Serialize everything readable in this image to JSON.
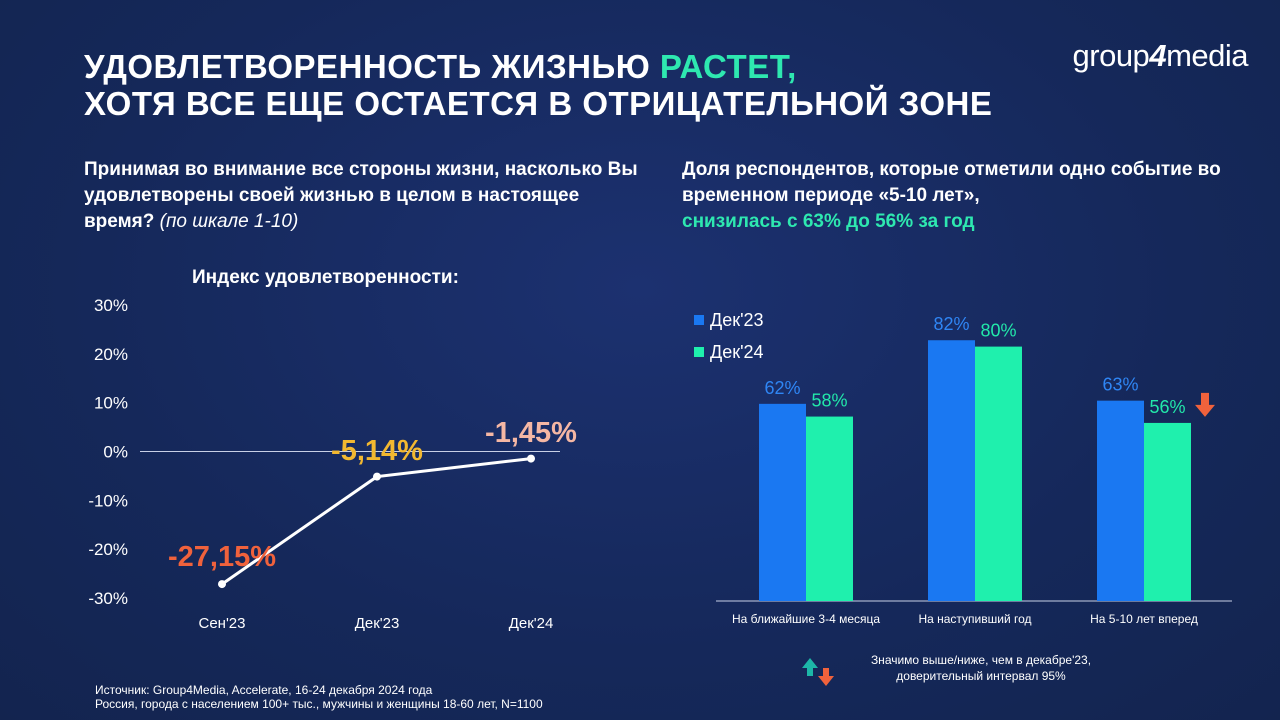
{
  "title": {
    "line1_prefix": "УДОВЛЕТВОРЕННОСТЬ ЖИЗНЬЮ ",
    "line1_accent": "РАСТЕТ,",
    "line2": "ХОТЯ ВСЕ ЕЩЕ ОСТАЕТСЯ В ОТРИЦАТЕЛЬНОЙ ЗОНЕ"
  },
  "logo": {
    "part1": "group",
    "part2": "4",
    "part3": "media"
  },
  "question": {
    "text": "Принимая во внимание все стороны жизни, насколько Вы удовлетворены своей жизнью в целом в настоящее время? ",
    "note": "(по шкале 1-10)"
  },
  "right_heading": {
    "text": "Доля респондентов, которые отметили одно событие во временном периоде «5-10 лет»,",
    "accent": "снизилась с 63% до 56% за год"
  },
  "colors": {
    "dec23": "#1a78f2",
    "dec24": "#1ff0ad",
    "accent": "#2ee8b0",
    "label_sep23": "#f0623c",
    "label_dec23": "#f2b830",
    "label_dec24": "#f5b7a4",
    "arrow_down": "#f0623c",
    "arrow_up": "#1db7a8"
  },
  "chart_data": [
    {
      "type": "line",
      "title": "Индекс удовлетворенности:",
      "categories": [
        "Сен'23",
        "Дек'23",
        "Дек'24"
      ],
      "values": [
        -27.15,
        -5.14,
        -1.45
      ],
      "data_labels": [
        "-27,15%",
        "-5,14%",
        "-1,45%"
      ],
      "ylim": [
        -30,
        30
      ],
      "yticks": [
        30,
        20,
        10,
        0,
        -10,
        -20,
        -30
      ],
      "ytick_labels": [
        "30%",
        "20%",
        "10%",
        "0%",
        "-10%",
        "-20%",
        "-30%"
      ],
      "grid": false
    },
    {
      "type": "bar",
      "categories": [
        "На ближайшие 3-4 месяца",
        "На наступивший год",
        "На 5-10 лет вперед"
      ],
      "series": [
        {
          "name": "Дек'23",
          "values": [
            62,
            82,
            63
          ],
          "labels": [
            "62%",
            "82%",
            "63%"
          ]
        },
        {
          "name": "Дек'24",
          "values": [
            58,
            80,
            56
          ],
          "labels": [
            "58%",
            "80%",
            "56%"
          ]
        }
      ],
      "ylim": [
        0,
        100
      ],
      "legend": "top-left"
    }
  ],
  "significance": {
    "text_line1": "Значимо выше/ниже, чем в декабре'23,",
    "text_line2": "доверительный  интервал 95%"
  },
  "source": {
    "line1": "Источник: Group4Media, Accelerate, 16-24 декабря 2024 года",
    "line2": "Россия, города с населением 100+ тыс., мужчины и женщины 18-60 лет, N=1100"
  }
}
